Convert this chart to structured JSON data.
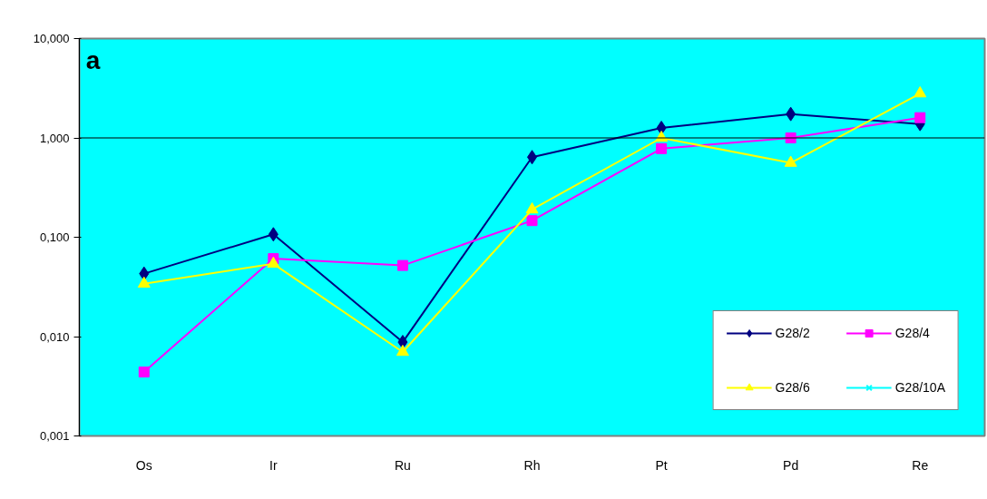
{
  "chart_data": {
    "type": "line",
    "categories": [
      "Os",
      "Ir",
      "Ru",
      "Rh",
      "Pt",
      "Pd",
      "Re"
    ],
    "series": [
      {
        "name": "G28/2",
        "color": "#000080",
        "marker": "diamond",
        "values": [
          0.043,
          0.107,
          0.0088,
          0.64,
          1.26,
          1.74,
          1.38
        ]
      },
      {
        "name": "G28/4",
        "color": "#ff00ff",
        "marker": "square",
        "values": [
          0.0044,
          0.061,
          0.052,
          0.147,
          0.78,
          1.0,
          1.6
        ]
      },
      {
        "name": "G28/6",
        "color": "#ffff00",
        "marker": "triangle",
        "values": [
          0.034,
          0.054,
          0.007,
          0.19,
          1.0,
          0.56,
          2.8
        ]
      },
      {
        "name": "G28/10A",
        "color": "#00ffff",
        "marker": "cross",
        "values": [
          null,
          null,
          null,
          null,
          null,
          null,
          null
        ]
      }
    ],
    "log": "y",
    "ylim": [
      0.001,
      10
    ],
    "yticks": [
      {
        "value": 0.001,
        "label": "0,001"
      },
      {
        "value": 0.01,
        "label": "0,010"
      },
      {
        "value": 0.1,
        "label": "0,100"
      },
      {
        "value": 1,
        "label": "1,000"
      },
      {
        "value": 10,
        "label": "10,000"
      }
    ],
    "ref_lines": [
      {
        "axis": "y",
        "value": 1,
        "label": null,
        "color": "#000000"
      }
    ],
    "annotations": [
      "a"
    ],
    "grid": false,
    "legend": "bottom right",
    "line_style": "solid"
  }
}
